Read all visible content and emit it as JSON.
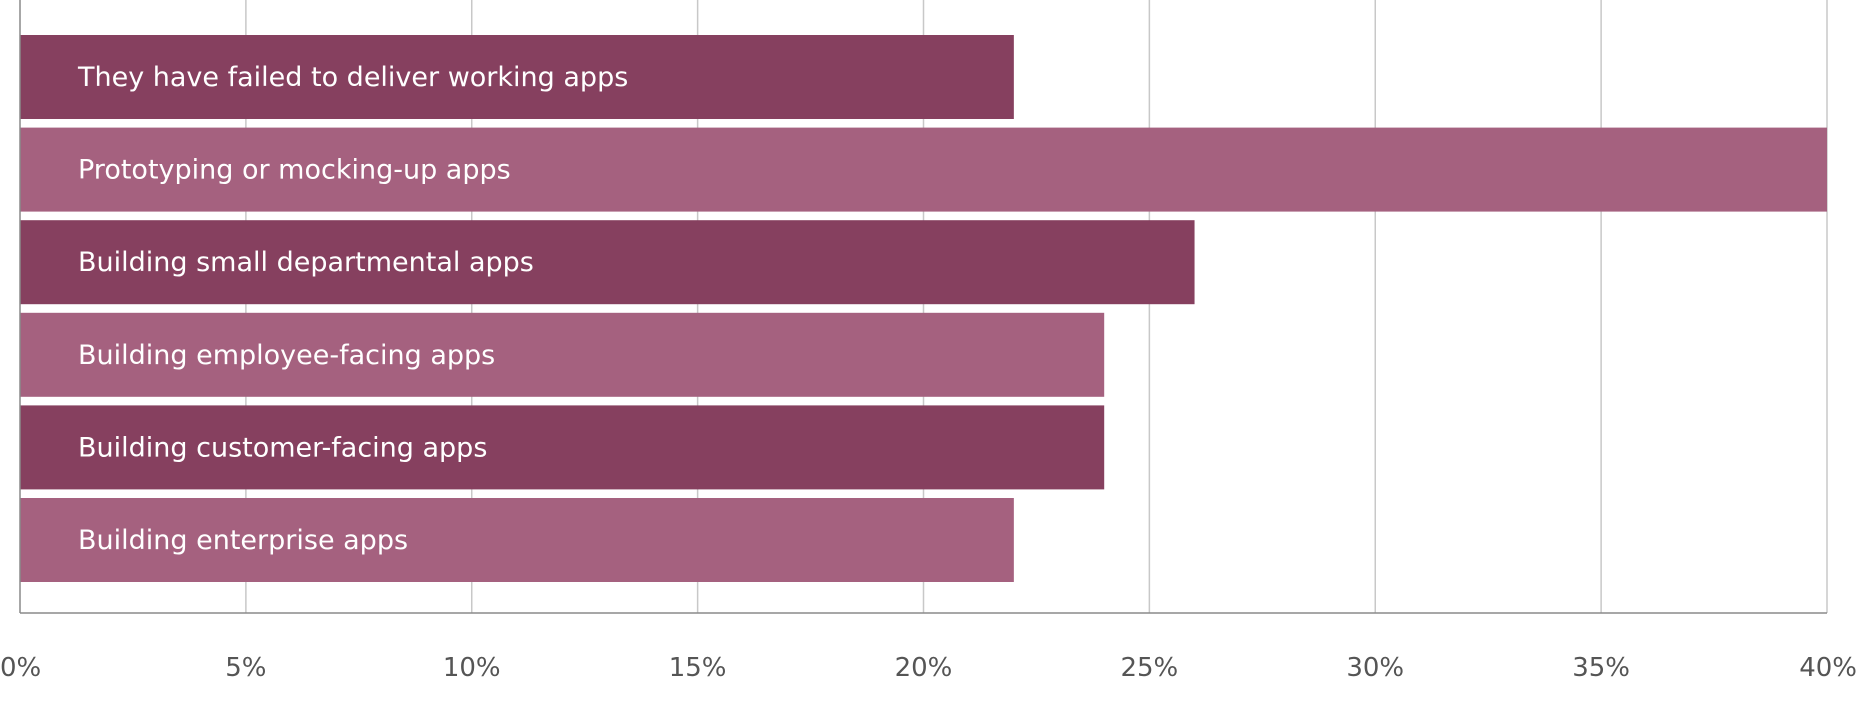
{
  "chart_data": {
    "type": "bar",
    "orientation": "horizontal",
    "title": "",
    "xlabel": "",
    "ylabel": "",
    "xlim": [
      0,
      40
    ],
    "x_ticks": [
      "0%",
      "5%",
      "10%",
      "15%",
      "20%",
      "25%",
      "30%",
      "35%",
      "40%"
    ],
    "grid": true,
    "legend": "none",
    "categories": [
      "They have failed to deliver working apps",
      "Prototyping or mocking-up apps",
      "Building small departmental apps",
      "Building employee-facing apps",
      "Building customer-facing apps",
      "Building enterprise apps"
    ],
    "values": [
      22,
      40,
      26,
      24,
      24,
      22
    ],
    "colors": [
      "#86405f",
      "#a5617f",
      "#86405f",
      "#a5617f",
      "#86405f",
      "#a5617f"
    ]
  }
}
